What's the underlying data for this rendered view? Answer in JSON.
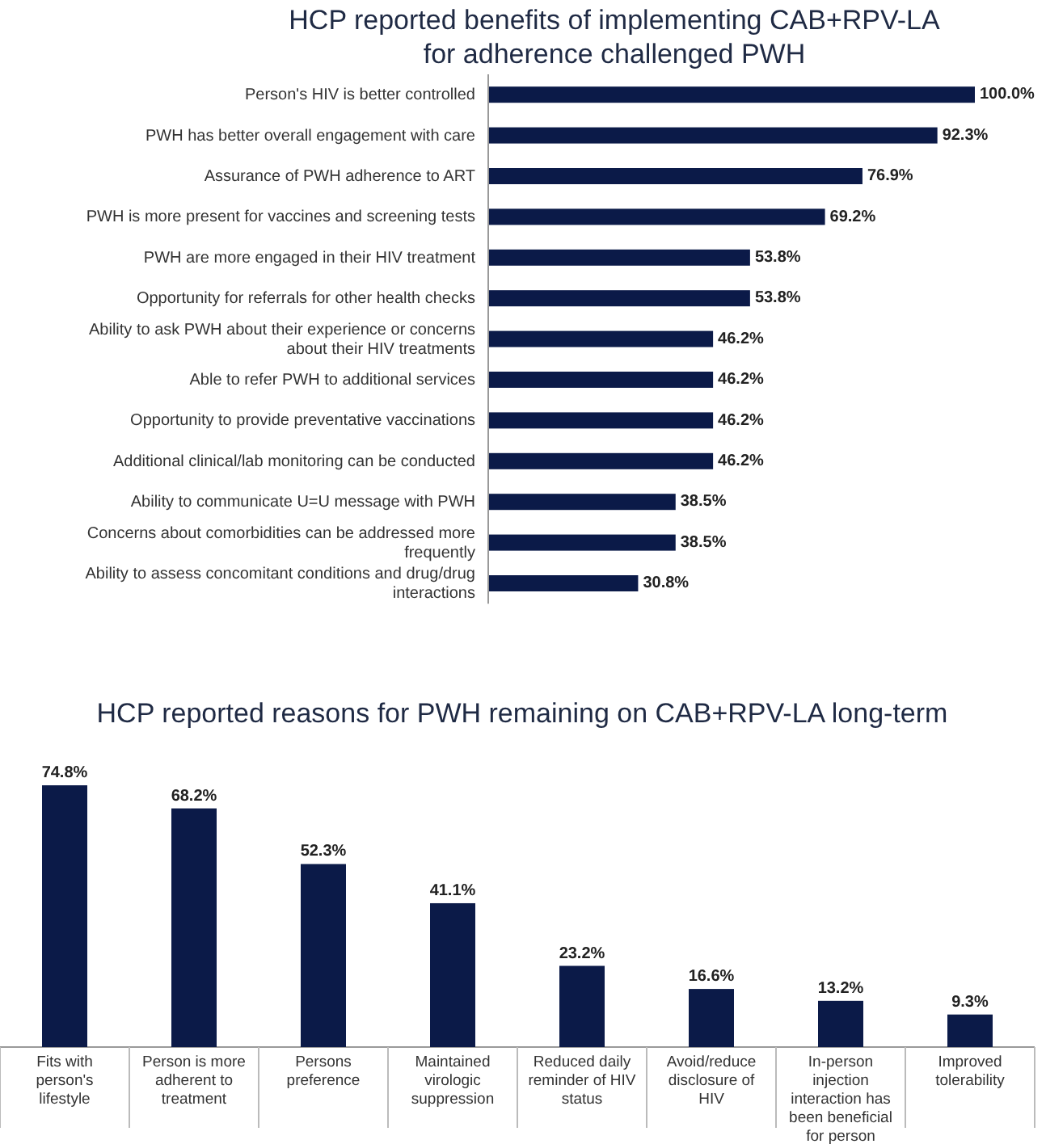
{
  "chart_data": [
    {
      "type": "bar",
      "orientation": "horizontal",
      "title": "HCP reported benefits of implementing CAB+RPV-LA for adherence challenged PWH",
      "categories": [
        "Person's HIV is better controlled",
        "PWH has better overall engagement with care",
        "Assurance of PWH adherence to ART",
        "PWH is more present for vaccines and screening tests",
        "PWH are more engaged in their HIV treatment",
        "Opportunity for referrals for other health checks",
        "Ability to ask PWH about their experience or concerns about their HIV treatments",
        "Able to refer PWH to additional services",
        "Opportunity to provide preventative vaccinations",
        "Additional clinical/lab monitoring can be conducted",
        "Ability to communicate U=U message with PWH",
        "Concerns about comorbidities can be addressed more frequently",
        "Ability to assess concomitant conditions and drug/drug interactions"
      ],
      "values": [
        100.0,
        92.3,
        76.9,
        69.2,
        53.8,
        53.8,
        46.2,
        46.2,
        46.2,
        46.2,
        38.5,
        38.5,
        30.8
      ],
      "value_labels": [
        "100.0%",
        "92.3%",
        "76.9%",
        "69.2%",
        "53.8%",
        "53.8%",
        "46.2%",
        "46.2%",
        "46.2%",
        "46.2%",
        "38.5%",
        "38.5%",
        "30.8%"
      ],
      "color": "#0b1a48"
    },
    {
      "type": "bar",
      "title": "HCP reported reasons for PWH remaining on CAB+RPV-LA long-term",
      "categories": [
        "Fits with person's lifestyle",
        "Person is more adherent to treatment",
        "Persons preference",
        "Maintained virologic suppression",
        "Reduced daily reminder of HIV status",
        "Avoid/reduce disclosure of HIV",
        "In-person injection interaction has been beneficial for person",
        "Improved tolerability"
      ],
      "values": [
        74.8,
        68.2,
        52.3,
        41.1,
        23.2,
        16.6,
        13.2,
        9.3
      ],
      "value_labels": [
        "74.8%",
        "68.2%",
        "52.3%",
        "41.1%",
        "23.2%",
        "16.6%",
        "13.2%",
        "9.3%"
      ],
      "color": "#0b1a48"
    }
  ]
}
